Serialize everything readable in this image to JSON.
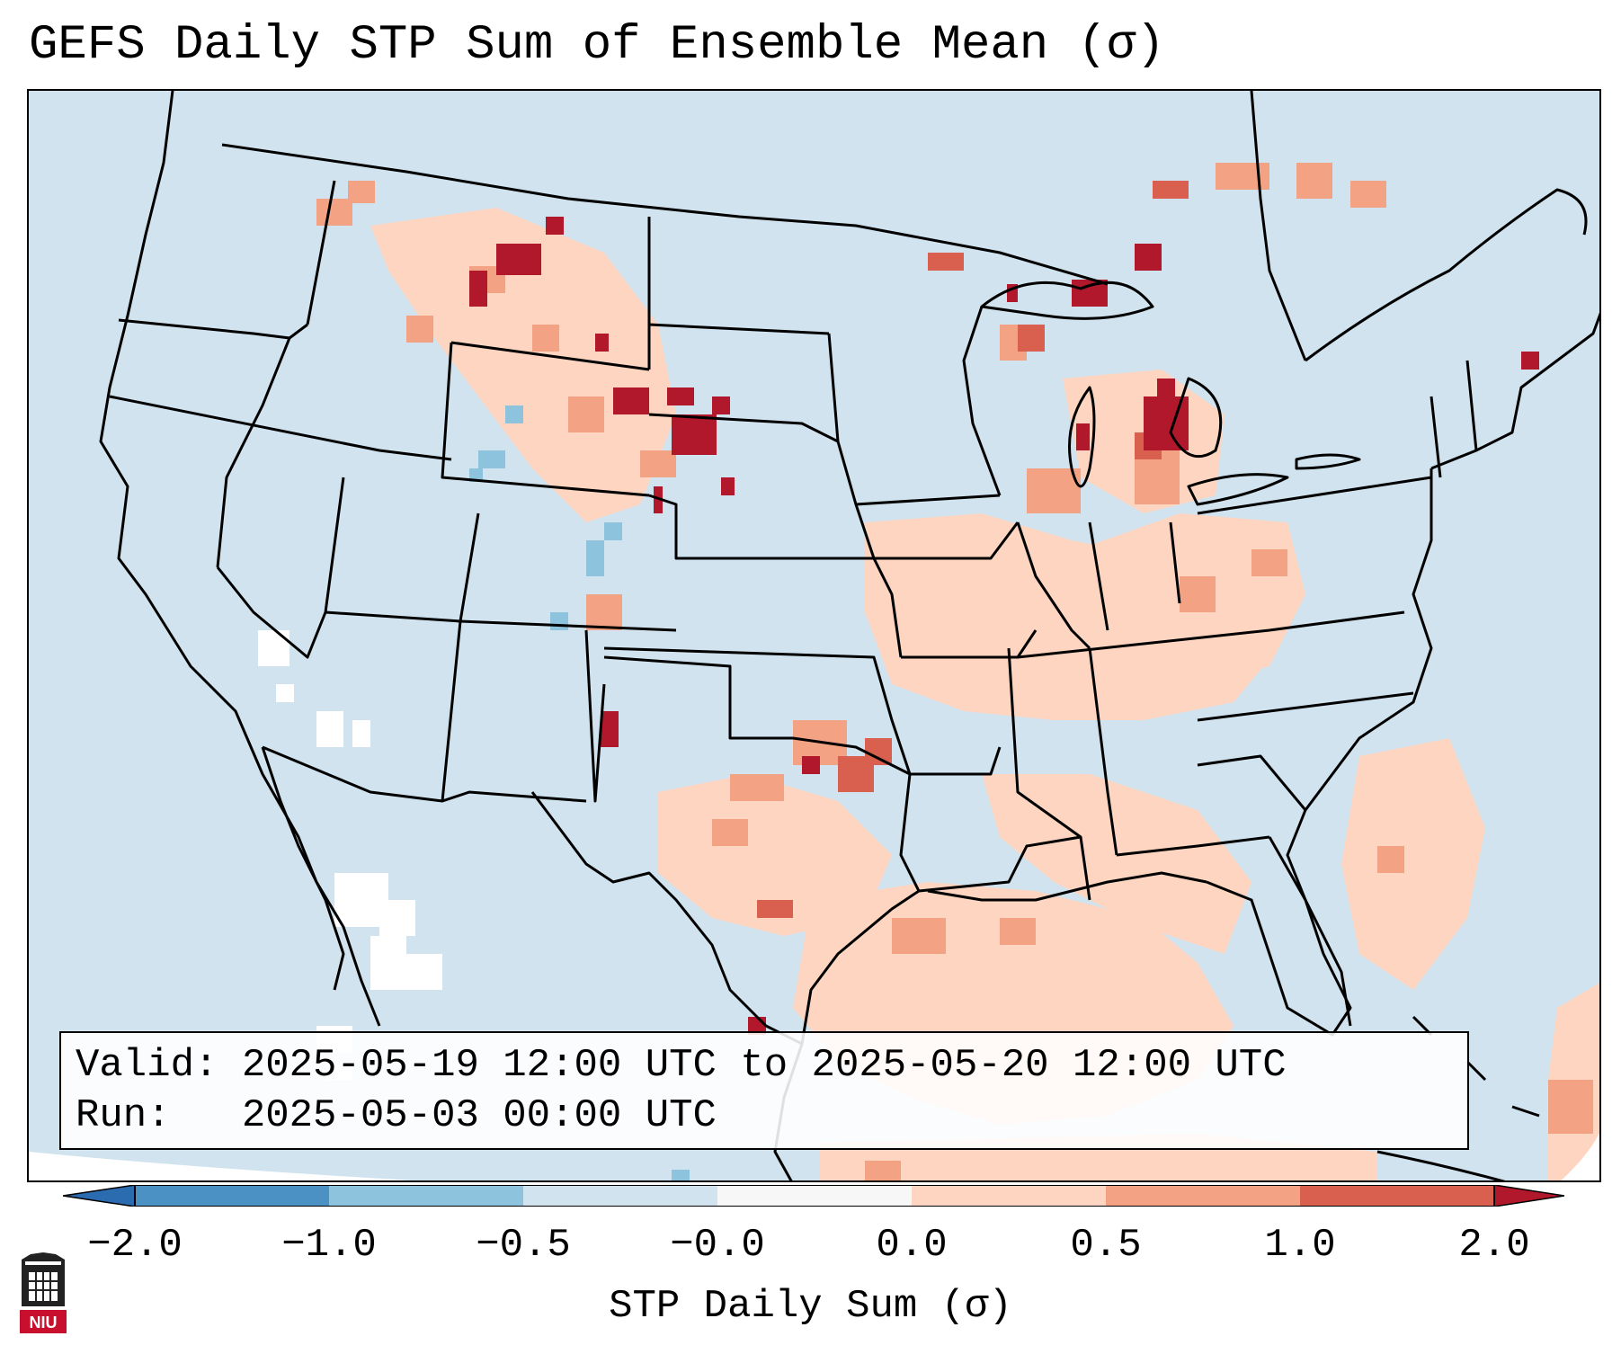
{
  "title": "GEFS Daily STP Sum of Ensemble Mean (σ)",
  "info": {
    "valid_line": "Valid: 2025-05-19 12:00 UTC to 2025-05-20 12:00 UTC",
    "run_line": "Run:   2025-05-03 00:00 UTC"
  },
  "colorbar": {
    "label": "STP Daily Sum (σ)",
    "ticks": [
      "−2.0",
      "−1.0",
      "−0.5",
      "−0.0",
      "0.0",
      "0.5",
      "1.0",
      "2.0"
    ],
    "colors": [
      "#2b6cb0",
      "#4b91c4",
      "#8ec3de",
      "#d0e3ef",
      "#f7f7f7",
      "#fdd5c1",
      "#f3a384",
      "#d9604f",
      "#b2182b"
    ]
  },
  "logo": {
    "text": "NIU"
  },
  "colors": {
    "background": "#d0e3ef",
    "light_positive": "#fdd5c1",
    "moderate_positive": "#f3a384",
    "strong_positive": "#d9604f",
    "max_positive": "#b2182b",
    "light_negative": "#8ec3de",
    "neutral": "#ffffff",
    "boundaries": "#000000"
  }
}
